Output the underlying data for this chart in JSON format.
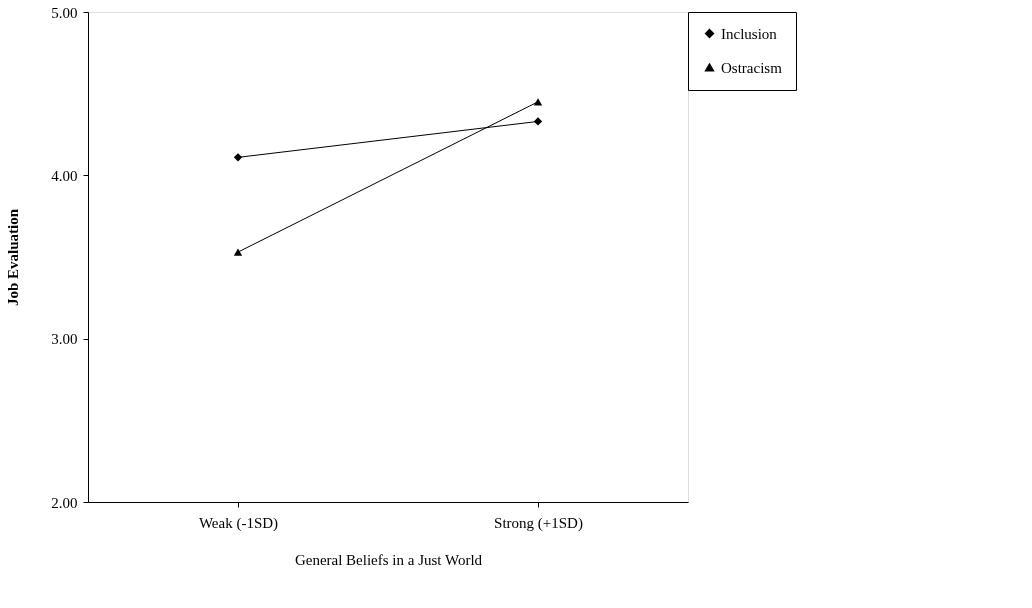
{
  "chart_data": {
    "type": "line",
    "xlabel": "General Beliefs in a Just World",
    "ylabel": "Job Evaluation",
    "categories": [
      "Weak  (-1SD)",
      "Strong (+1SD)"
    ],
    "series": [
      {
        "name": "Inclusion",
        "color": "#000000",
        "marker": "diamond",
        "values": [
          4.11,
          4.33
        ]
      },
      {
        "name": "Ostracism",
        "color": "#000000",
        "marker": "triangle",
        "values": [
          3.53,
          4.45
        ]
      }
    ],
    "ylim": [
      2,
      5
    ],
    "yticks": [
      {
        "value": 2,
        "label": "2.00"
      },
      {
        "value": 3,
        "label": "3.00"
      },
      {
        "value": 4,
        "label": "4.00"
      },
      {
        "value": 5,
        "label": "5.00"
      }
    ],
    "grid": false,
    "legend": "right",
    "line_style": "solid"
  }
}
